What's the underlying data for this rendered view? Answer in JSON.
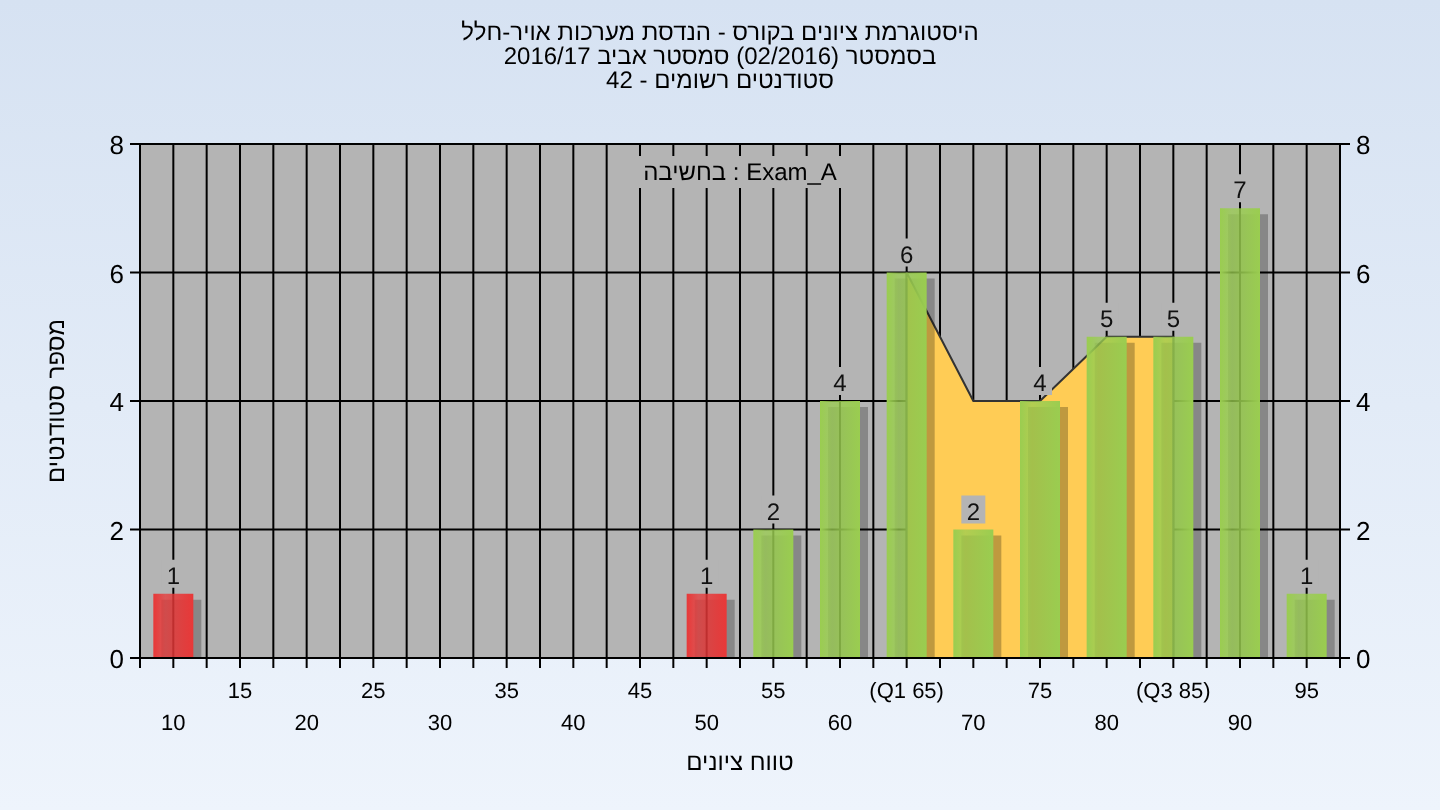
{
  "chart_data": {
    "type": "bar",
    "title": "היסטוגרמת ציונים בקורס - הנדסת מערכות אויר-חלל",
    "subtitle": "בסמסטר (02/2016) סמסטר אביב 2016/17\nסטודנטים רשומים - 42",
    "xlabel": "טווח ציונים",
    "ylabel": "מספר סטודנטים",
    "annotations": [
      "Exam_A : בחשיבה"
    ],
    "categories": [
      "10",
      "15",
      "20",
      "25",
      "30",
      "35",
      "40",
      "45",
      "50",
      "55",
      "60",
      "(Q1 65)",
      "70",
      "75",
      "80",
      "(Q3 85)",
      "90",
      "95"
    ],
    "series": [
      {
        "type": "area",
        "color": "#ffcc55",
        "values": [
          null,
          null,
          null,
          null,
          null,
          null,
          null,
          null,
          null,
          null,
          null,
          6,
          4,
          4,
          5,
          5,
          null,
          null
        ]
      },
      {
        "colors": [
          "#e83838",
          "#9acd50",
          "#9acd50",
          "#9acd50",
          "#9acd50",
          "#9acd50",
          "#9acd50",
          "#9acd50",
          "#e83838",
          "#9acd50",
          "#9acd50",
          "#9acd50",
          "#9acd50",
          "#9acd50",
          "#9acd50",
          "#9acd50",
          "#9acd50",
          "#9acd50"
        ],
        "values": [
          1,
          0,
          0,
          0,
          0,
          0,
          0,
          0,
          1,
          2,
          4,
          6,
          2,
          4,
          5,
          5,
          7,
          1
        ],
        "value_labels": [
          "1",
          null,
          null,
          null,
          null,
          null,
          null,
          null,
          "1",
          "2",
          "4",
          "6",
          "2",
          "4",
          "5",
          "5",
          "7",
          "1"
        ]
      }
    ],
    "ylim": [
      0,
      8
    ],
    "yticks": [
      0,
      2,
      4,
      6,
      8
    ],
    "y2lim": [
      0,
      8
    ],
    "y2ticks": [
      0,
      2,
      4,
      6,
      8
    ],
    "grid": true
  }
}
